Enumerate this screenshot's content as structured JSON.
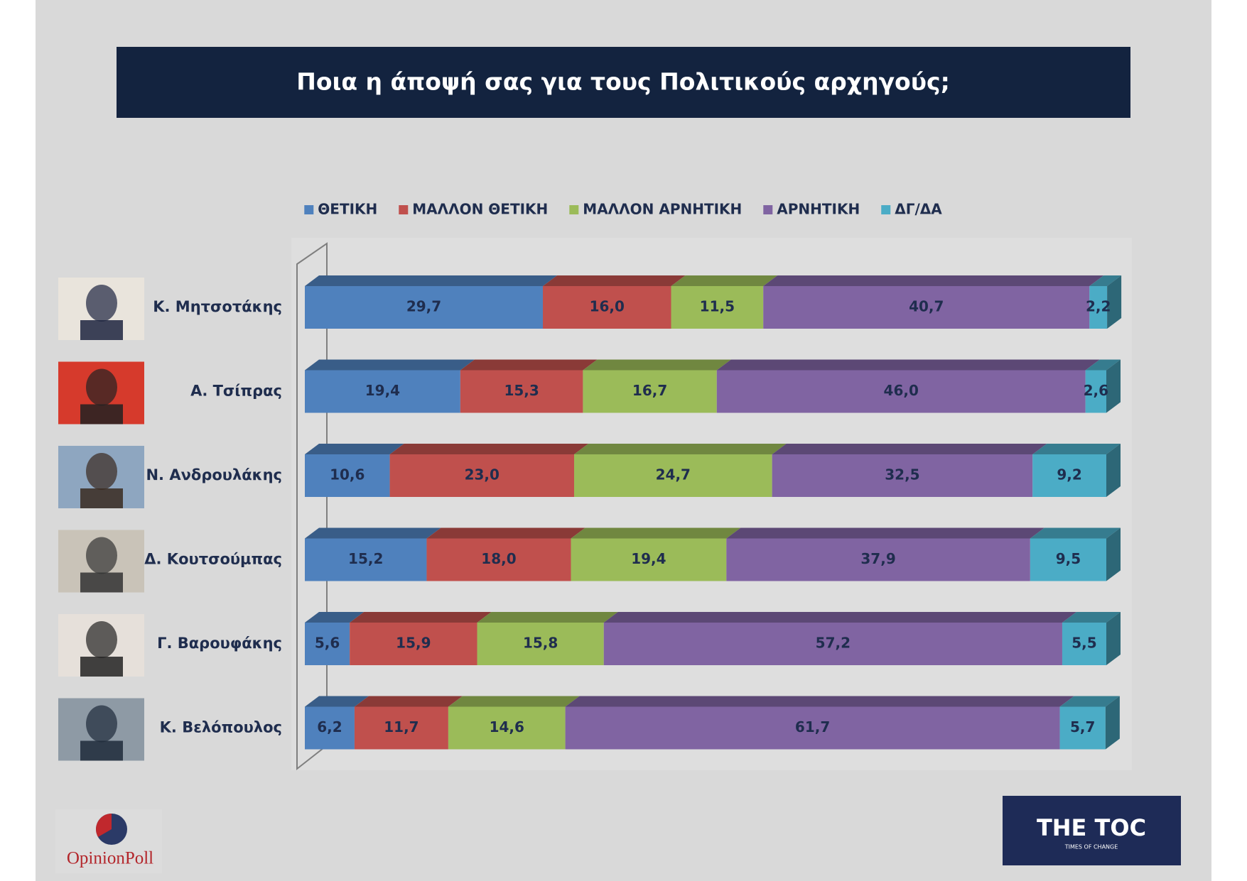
{
  "chart_data": {
    "type": "stacked-barh",
    "title": "Ποια η άποψή σας για τους Πολιτικούς αρχηγούς;",
    "categories": [
      "Κ. Μητσοτάκης",
      "Α. Τσίπρας",
      "Ν. Ανδρουλάκης",
      "Δ. Κουτσούμπας",
      "Γ. Βαρουφάκης",
      "Κ. Βελόπουλος"
    ],
    "xlim": [
      0,
      100
    ],
    "legend": "top",
    "series": [
      {
        "name": "ΘΕΤΙΚΗ",
        "color": "#4f81bd",
        "values": [
          29.7,
          19.4,
          10.6,
          15.2,
          5.6,
          6.2
        ],
        "value_labels": [
          "29,7",
          "19,4",
          "10,6",
          "15,2",
          "5,6",
          "6,2"
        ]
      },
      {
        "name": "ΜΑΛΛΟΝ ΘΕΤΙΚΗ",
        "color": "#c0504d",
        "values": [
          16.0,
          15.3,
          23.0,
          18.0,
          15.9,
          11.7
        ],
        "value_labels": [
          "16,0",
          "15,3",
          "23,0",
          "18,0",
          "15,9",
          "11,7"
        ]
      },
      {
        "name": "ΜΑΛΛΟΝ ΑΡΝΗΤΙΚΗ",
        "color": "#9bbb59",
        "values": [
          11.5,
          16.7,
          24.7,
          19.4,
          15.8,
          14.6
        ],
        "value_labels": [
          "11,5",
          "16,7",
          "24,7",
          "19,4",
          "15,8",
          "14,6"
        ]
      },
      {
        "name": "ΑΡΝΗΤΙΚΗ",
        "color": "#8064a2",
        "values": [
          40.7,
          46.0,
          32.5,
          37.9,
          57.2,
          61.7
        ],
        "value_labels": [
          "40,7",
          "46,0",
          "32,5",
          "37,9",
          "57,2",
          "61,7"
        ]
      },
      {
        "name": "ΔΓ/ΔΑ",
        "color": "#4bacc6",
        "values": [
          2.2,
          2.6,
          9.2,
          9.5,
          5.5,
          5.7
        ],
        "value_labels": [
          "2,2",
          "2,6",
          "9,2",
          "9,5",
          "5,5",
          "5,7"
        ]
      }
    ]
  },
  "footer": {
    "left_logo": "OpinionPoll",
    "right_logo": "THE TOC",
    "right_tagline": "TIMES OF CHANGE"
  }
}
